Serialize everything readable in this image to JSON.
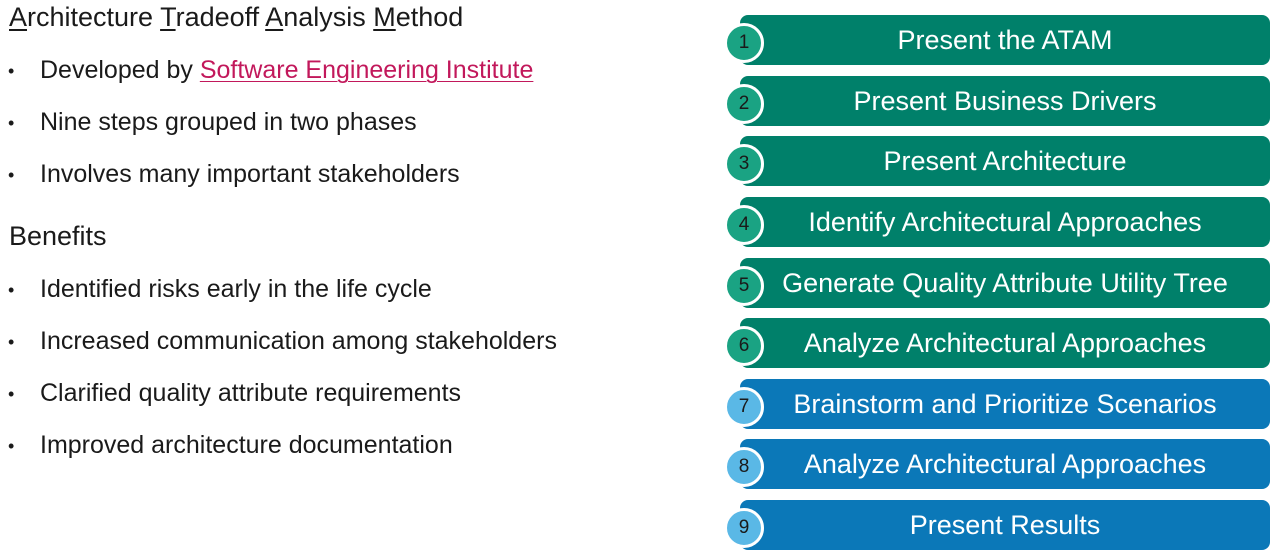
{
  "title": {
    "word1_initial": "A",
    "word1_rest": "rchitecture ",
    "word2_initial": "T",
    "word2_rest": "radeoff ",
    "word3_initial": "A",
    "word3_rest": "nalysis ",
    "word4_initial": "M",
    "word4_rest": "ethod"
  },
  "intro_bullets": {
    "developed_prefix": "Developed by ",
    "developed_link": "Software Engineering Institute",
    "item2": "Nine steps grouped in two phases",
    "item3": "Involves many important stakeholders"
  },
  "bullet_glyph": "•",
  "benefits": {
    "heading": "Benefits",
    "items": [
      "Identified risks early in the life cycle",
      "Increased communication among stakeholders",
      "Clarified quality attribute requirements",
      "Improved architecture documentation"
    ]
  },
  "steps": [
    {
      "number": "1",
      "label": "Present the ATAM"
    },
    {
      "number": "2",
      "label": "Present Business Drivers"
    },
    {
      "number": "3",
      "label": "Present Architecture"
    },
    {
      "number": "4",
      "label": "Identify Architectural Approaches"
    },
    {
      "number": "5",
      "label": "Generate Quality Attribute Utility Tree"
    },
    {
      "number": "6",
      "label": "Analyze Architectural Approaches"
    },
    {
      "number": "7",
      "label": "Brainstorm and Prioritize Scenarios"
    },
    {
      "number": "8",
      "label": "Analyze Architectural Approaches"
    },
    {
      "number": "9",
      "label": "Present Results"
    }
  ],
  "colors": {
    "phase1_bar": "#00806a",
    "phase1_circle": "#1aa383",
    "phase2_bar": "#0b78b8",
    "phase2_circle": "#5ab8e6",
    "link": "#c2185b"
  }
}
